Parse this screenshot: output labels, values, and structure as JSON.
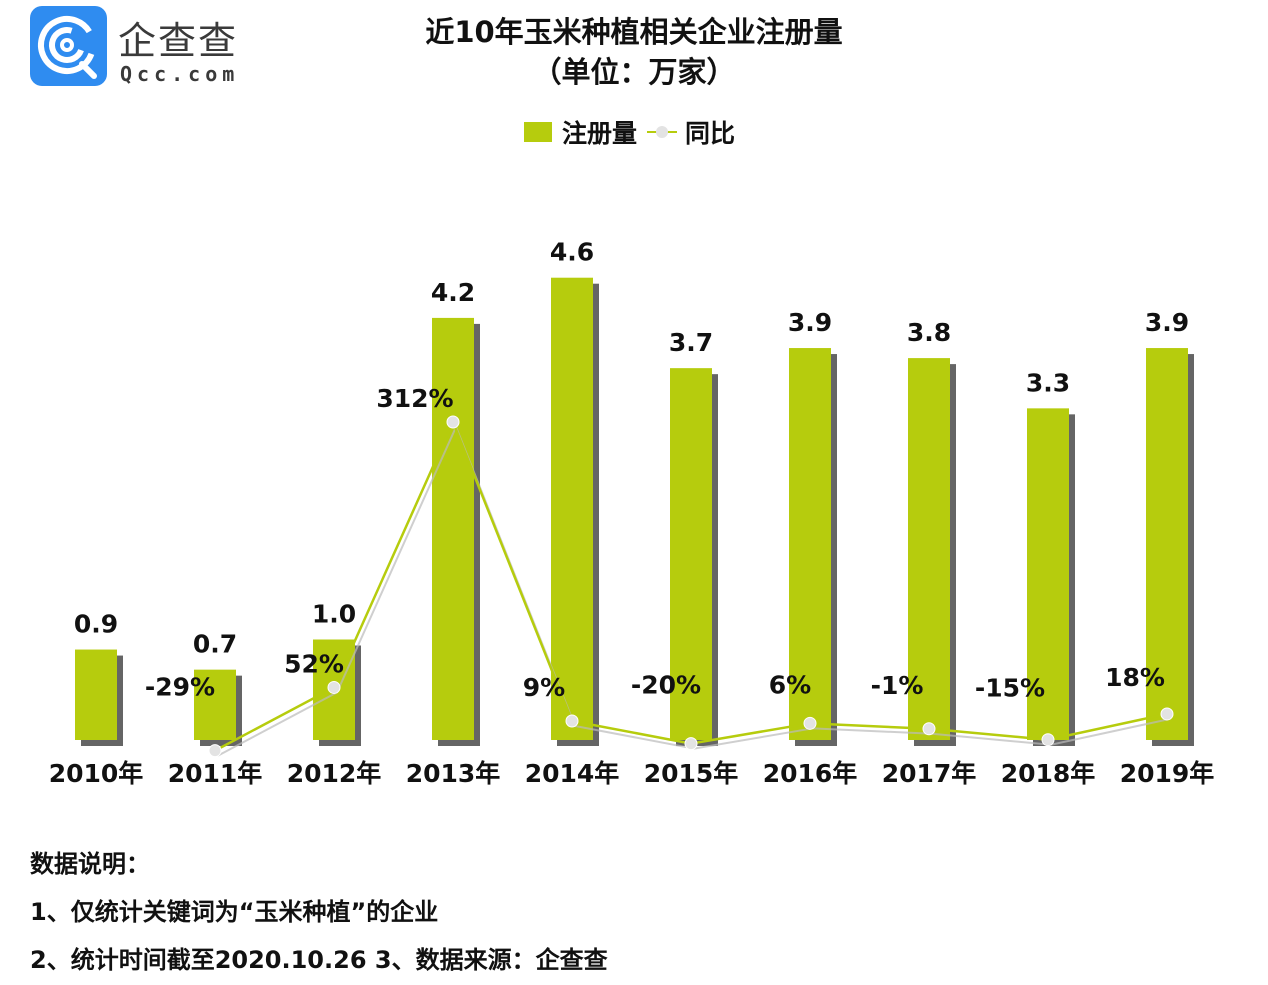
{
  "logo": {
    "name_cn": "企查查",
    "domain": "Qcc.com",
    "brand_color": "#2F8CF0"
  },
  "title": {
    "line1": "近10年玉米种植相关企业注册量",
    "line2": "（单位：万家）"
  },
  "legend": {
    "bar_label": "注册量",
    "line_label": "同比"
  },
  "colors": {
    "bar": "#B6CC0D",
    "shadow": "#4a4a4a",
    "line": "#B6CC0D",
    "point": "#e3e3e3"
  },
  "chart_data": {
    "type": "bar",
    "title": "近10年玉米种植相关企业注册量（单位：万家）",
    "xlabel": "",
    "ylabel": "",
    "categories": [
      "2010年",
      "2011年",
      "2012年",
      "2013年",
      "2014年",
      "2015年",
      "2016年",
      "2017年",
      "2018年",
      "2019年"
    ],
    "series": [
      {
        "name": "注册量",
        "type": "bar",
        "unit": "万家",
        "values": [
          0.9,
          0.7,
          1.0,
          4.2,
          4.6,
          3.7,
          3.9,
          3.8,
          3.3,
          3.9
        ],
        "labels": [
          "0.9",
          "0.7",
          "1.0",
          "4.2",
          "4.6",
          "3.7",
          "3.9",
          "3.8",
          "3.3",
          "3.9"
        ]
      },
      {
        "name": "同比",
        "type": "line",
        "unit": "%",
        "values": [
          null,
          -29,
          52,
          312,
          9,
          -20,
          6,
          -1,
          -15,
          18
        ],
        "labels": [
          "",
          "-29%",
          "52%",
          "312%",
          "9%",
          "-20%",
          "6%",
          "-1%",
          "-15%",
          "18%"
        ]
      }
    ],
    "grid": false,
    "legend_position": "top"
  },
  "notes": {
    "heading": "数据说明：",
    "line1": "1、仅统计关键词为“玉米种植”的企业",
    "line2": "2、统计时间截至2020.10.26   3、数据来源：企查查"
  }
}
